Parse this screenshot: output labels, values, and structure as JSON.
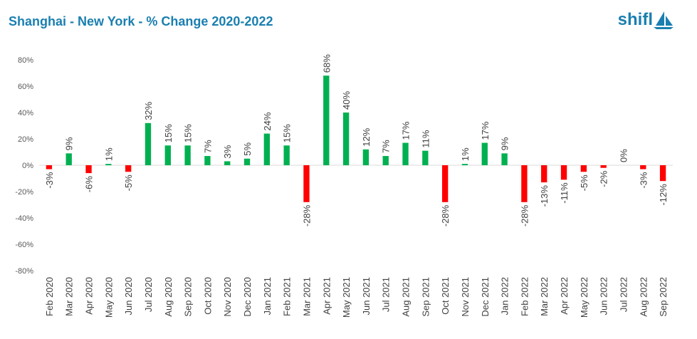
{
  "header": {
    "title": "Shanghai - New York - % Change 2020-2022",
    "logo_text": "shifl",
    "logo_icon": "sail-boat-icon",
    "title_color": "#1a7fb0",
    "logo_color": "#1a7fb0"
  },
  "colors": {
    "positive": "#00b050",
    "negative": "#ff0000",
    "axis": "#d9d9d9",
    "text": "#404040"
  },
  "chart_data": {
    "type": "bar",
    "title": "Shanghai - New York - % Change 2020-2022",
    "xlabel": "",
    "ylabel": "",
    "ylim": [
      -80,
      80
    ],
    "yticks": [
      80,
      60,
      40,
      20,
      0,
      -20,
      -40,
      -60,
      -80
    ],
    "ytick_labels": [
      "80%",
      "60%",
      "40%",
      "20%",
      "0%",
      "-20%",
      "-40%",
      "-60%",
      "-80%"
    ],
    "grid": false,
    "legend": "none",
    "categories": [
      "Feb 2020",
      "Mar 2020",
      "Apr 2020",
      "May 2020",
      "Jun 2020",
      "Jul 2020",
      "Aug 2020",
      "Sep 2020",
      "Oct 2020",
      "Nov 2020",
      "Dec 2020",
      "Jan 2021",
      "Feb 2021",
      "Mar 2021",
      "Apr 2021",
      "May 2021",
      "Jun 2021",
      "Jul 2021",
      "Aug 2021",
      "Sep 2021",
      "Oct 2021",
      "Nov 2021",
      "Dec 2021",
      "Jan 2022",
      "Feb 2022",
      "Mar 2022",
      "Apr 2022",
      "May 2022",
      "Jun 2022",
      "Jul 2022",
      "Aug 2022",
      "Sep 2022"
    ],
    "values": [
      -3,
      9,
      -6,
      1,
      -5,
      32,
      15,
      15,
      7,
      3,
      5,
      24,
      15,
      -28,
      68,
      40,
      12,
      7,
      17,
      11,
      -28,
      1,
      17,
      9,
      -28,
      -13,
      -11,
      -5,
      -2,
      0,
      -3,
      -12
    ],
    "data_labels": [
      "-3%",
      "9%",
      "-6%",
      "1%",
      "-5%",
      "32%",
      "15%",
      "15%",
      "7%",
      "3%",
      "5%",
      "24%",
      "15%",
      "-28%",
      "68%",
      "40%",
      "12%",
      "7%",
      "17%",
      "11%",
      "-28%",
      "1%",
      "17%",
      "9%",
      "-28%",
      "-13%",
      "-11%",
      "-5%",
      "-2%",
      "0%",
      "-3%",
      "-12%"
    ]
  }
}
